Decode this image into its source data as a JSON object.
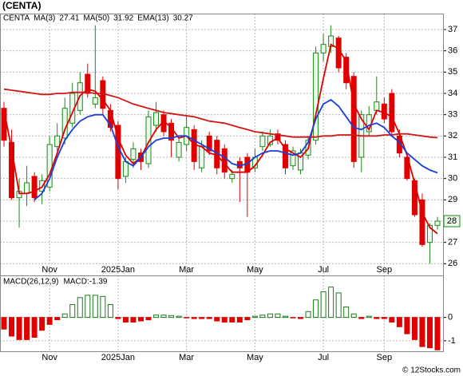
{
  "chart_data": [
    {
      "type": "candlestick",
      "title": "(CENTA)",
      "symbol": "CENTA",
      "categories": [
        null,
        null,
        null,
        null,
        null,
        null,
        "Nov",
        null,
        null,
        null,
        null,
        null,
        null,
        null,
        null,
        "2025Jan",
        null,
        null,
        null,
        null,
        null,
        null,
        null,
        null,
        "Mar",
        null,
        null,
        null,
        null,
        null,
        null,
        null,
        null,
        "May",
        null,
        null,
        null,
        null,
        null,
        null,
        null,
        null,
        "Jul",
        null,
        null,
        null,
        null,
        null,
        null,
        null,
        "Sep",
        null,
        null,
        null,
        null,
        null,
        null,
        null
      ],
      "open": [
        33.3,
        31.7,
        29.1,
        29.3,
        30.1,
        29.4,
        29.6,
        31.5,
        31.9,
        32.6,
        33.2,
        34.9,
        33.5,
        34.6,
        33.2,
        32.5,
        30.1,
        30.9,
        31.2,
        30.7,
        32.5,
        33.0,
        32.6,
        31.0,
        31.6,
        32.3,
        30.5,
        32.0,
        31.8,
        31.4,
        30.0,
        30.8,
        31.0,
        30.5,
        31.5,
        31.6,
        32.1,
        31.6,
        30.6,
        30.4,
        31.1,
        31.8,
        35.9,
        36.2,
        36.6,
        35.7,
        34.8,
        31.0,
        32.2,
        33.2,
        33.5,
        34.0,
        32.0,
        31.0,
        29.9,
        29.0,
        27.0,
        27.8
      ],
      "high": [
        33.6,
        32.3,
        30.0,
        30.6,
        30.3,
        30.2,
        32.0,
        32.6,
        33.8,
        34.5,
        35.0,
        35.4,
        37.2,
        34.8,
        33.5,
        32.7,
        31.0,
        31.7,
        31.4,
        33.2,
        33.6,
        33.2,
        32.8,
        32.0,
        33.0,
        32.5,
        31.8,
        32.2,
        32.0,
        31.6,
        30.4,
        31.0,
        31.2,
        31.4,
        32.2,
        32.3,
        32.3,
        31.8,
        31.5,
        31.4,
        32.0,
        36.2,
        36.8,
        37.2,
        36.7,
        35.9,
        35.0,
        33.2,
        33.4,
        34.8,
        33.8,
        34.2,
        32.3,
        31.2,
        30.0,
        29.3,
        27.9,
        28.2
      ],
      "low": [
        31.5,
        29.0,
        27.7,
        28.7,
        28.9,
        28.8,
        29.4,
        31.3,
        31.6,
        32.4,
        33.0,
        33.8,
        33.3,
        33.0,
        32.2,
        29.5,
        29.8,
        30.5,
        30.4,
        30.5,
        32.2,
        32.0,
        31.0,
        30.8,
        31.3,
        30.4,
        30.3,
        31.1,
        30.2,
        30.0,
        29.8,
        28.9,
        28.2,
        30.3,
        31.3,
        31.5,
        31.6,
        30.2,
        30.4,
        30.2,
        30.9,
        31.6,
        35.5,
        35.9,
        35.0,
        34.2,
        30.5,
        30.3,
        32.0,
        33.0,
        32.6,
        32.0,
        31.0,
        29.9,
        28.2,
        26.8,
        26.0,
        27.6
      ],
      "close": [
        31.8,
        29.1,
        29.4,
        29.8,
        29.1,
        29.9,
        31.6,
        32.0,
        33.3,
        34.0,
        34.5,
        34.0,
        33.8,
        33.3,
        32.4,
        30.0,
        30.8,
        31.4,
        30.8,
        32.9,
        33.1,
        32.2,
        31.8,
        31.7,
        32.4,
        30.8,
        31.5,
        31.3,
        30.5,
        30.3,
        30.2,
        30.5,
        30.3,
        31.0,
        32.0,
        32.0,
        31.8,
        30.5,
        31.3,
        31.2,
        31.8,
        35.9,
        36.3,
        36.7,
        35.2,
        34.5,
        30.8,
        33.0,
        33.0,
        33.6,
        32.8,
        32.2,
        31.2,
        30.0,
        28.3,
        26.9,
        27.8,
        28.0
      ],
      "up_color": "#1a8a1a",
      "down_color": "#e00000",
      "series": [
        {
          "name": "MA(3)",
          "color": "#e00000",
          "legend_value": 27.41,
          "values": [
            33.2,
            31.4,
            29.3,
            29.3,
            29.4,
            29.6,
            30.2,
            31.2,
            32.3,
            33.1,
            33.9,
            34.2,
            34.1,
            33.7,
            33.2,
            31.9,
            31.1,
            30.7,
            31.0,
            31.7,
            32.3,
            32.7,
            32.4,
            31.9,
            32.0,
            31.6,
            31.5,
            31.2,
            31.1,
            30.7,
            30.3,
            30.3,
            30.3,
            30.6,
            31.1,
            31.7,
            31.9,
            31.4,
            31.2,
            31.0,
            31.4,
            33.0,
            34.7,
            36.3,
            36.1,
            35.5,
            33.5,
            32.8,
            32.3,
            33.2,
            33.1,
            32.9,
            32.1,
            31.1,
            29.8,
            28.4,
            27.7,
            27.41
          ]
        },
        {
          "name": "MA(50)",
          "color": "#d01818",
          "legend_value": 31.92,
          "values": [
            34.2,
            34.15,
            34.1,
            34.05,
            34.0,
            33.95,
            33.95,
            34.0,
            34.0,
            34.05,
            34.05,
            34.05,
            34.0,
            34.0,
            33.9,
            33.8,
            33.65,
            33.5,
            33.4,
            33.3,
            33.2,
            33.1,
            33.05,
            33.0,
            32.95,
            32.9,
            32.8,
            32.7,
            32.65,
            32.6,
            32.5,
            32.4,
            32.3,
            32.2,
            32.15,
            32.1,
            32.05,
            32.0,
            31.95,
            31.95,
            31.95,
            31.95,
            32.0,
            32.0,
            32.05,
            32.05,
            32.05,
            32.0,
            32.0,
            32.0,
            32.05,
            32.05,
            32.1,
            32.1,
            32.05,
            32.0,
            31.95,
            31.92
          ]
        },
        {
          "name": "EMA(13)",
          "color": "#1a3fd8",
          "legend_value": 30.27,
          "values": [
            null,
            null,
            null,
            null,
            29.0,
            29.3,
            30.0,
            31.0,
            31.8,
            32.3,
            32.7,
            32.9,
            33.0,
            33.0,
            32.5,
            31.5,
            30.8,
            30.6,
            31.0,
            31.5,
            31.8,
            31.9,
            31.9,
            32.0,
            32.0,
            31.8,
            31.6,
            31.4,
            31.2,
            31.0,
            30.7,
            30.6,
            30.7,
            31.0,
            31.2,
            31.3,
            31.3,
            31.2,
            31.1,
            31.2,
            31.7,
            32.8,
            33.5,
            33.7,
            33.4,
            32.9,
            32.4,
            32.3,
            32.5,
            32.6,
            32.4,
            32.0,
            31.7,
            31.2,
            30.9,
            30.6,
            30.4,
            30.27
          ]
        }
      ],
      "last_price": 28,
      "ylim": [
        25.45,
        37.75
      ],
      "yticks": [
        26,
        27,
        28,
        29,
        30,
        31,
        32,
        33,
        34,
        35,
        36,
        37
      ],
      "grid": true
    },
    {
      "type": "bar",
      "title": "MACD(26,12,9)",
      "current_label": "MACD:-1.39",
      "categories": [
        null,
        null,
        null,
        null,
        null,
        null,
        "Nov",
        null,
        null,
        null,
        null,
        null,
        null,
        null,
        null,
        "2025Jan",
        null,
        null,
        null,
        null,
        null,
        null,
        null,
        null,
        "Mar",
        null,
        null,
        null,
        null,
        null,
        null,
        null,
        null,
        "May",
        null,
        null,
        null,
        null,
        null,
        null,
        null,
        null,
        "Jul",
        null,
        null,
        null,
        null,
        null,
        null,
        null,
        "Sep",
        null,
        null,
        null,
        null,
        null,
        null,
        null
      ],
      "values": [
        -0.5,
        -0.8,
        -0.95,
        -0.95,
        -0.85,
        -0.55,
        -0.3,
        -0.1,
        0.15,
        0.55,
        0.85,
        0.95,
        0.95,
        0.9,
        0.55,
        -0.05,
        -0.2,
        -0.2,
        -0.15,
        -0.1,
        0.1,
        0.1,
        0.08,
        0.05,
        -0.02,
        -0.05,
        -0.05,
        -0.05,
        -0.15,
        -0.2,
        -0.2,
        -0.2,
        -0.1,
        0.05,
        0.1,
        0.15,
        0.15,
        0.05,
        -0.02,
        -0.05,
        0.25,
        0.75,
        1.1,
        1.3,
        1.05,
        0.45,
        0.15,
        -0.05,
        0.05,
        -0.05,
        -0.05,
        -0.2,
        -0.4,
        -0.7,
        -0.95,
        -1.25,
        -1.3,
        -1.39
      ],
      "up_color": "#1a7a1a",
      "down_color": "#e00000",
      "ylim": [
        -1.45,
        1.8
      ],
      "yticks": [
        -1,
        0
      ],
      "grid": true
    }
  ],
  "footer": "© 12Stocks.com"
}
